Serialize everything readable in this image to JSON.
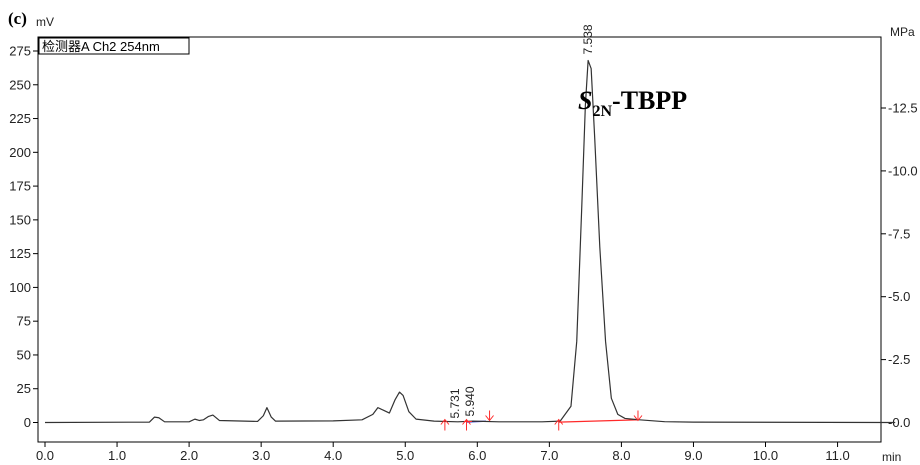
{
  "panel_label": "(c)",
  "chart_data": {
    "type": "line",
    "title": "",
    "detector_label": "检测器A Ch2 254nm",
    "compound_label": {
      "italic": "S",
      "subscript": "2N",
      "rest": "-TBPP"
    },
    "xlabel": "min",
    "ylabel_left": "mV",
    "ylabel_right": "MPa",
    "xlim": [
      0.0,
      11.8
    ],
    "ylim_left": [
      -5,
      280
    ],
    "ylim_right": [
      0.0,
      14.7
    ],
    "x_ticks": [
      "0.0",
      "1.0",
      "2.0",
      "3.0",
      "4.0",
      "5.0",
      "6.0",
      "7.0",
      "8.0",
      "9.0",
      "10.0",
      "11.0"
    ],
    "y_ticks_left": [
      "0",
      "25",
      "50",
      "75",
      "100",
      "125",
      "150",
      "175",
      "200",
      "225",
      "250",
      "275"
    ],
    "y_ticks_right": [
      "0.0",
      "2.5",
      "5.0",
      "7.5",
      "10.0",
      "12.5"
    ],
    "grid": false,
    "peak_labels": [
      {
        "x": 7.538,
        "text": "7.538"
      },
      {
        "x": 5.731,
        "text": "5.731"
      },
      {
        "x": 5.94,
        "text": "5.940"
      }
    ],
    "series": [
      {
        "color": "#333333",
        "points": [
          [
            0.0,
            0.0
          ],
          [
            1.45,
            0.3
          ],
          [
            1.52,
            4.0
          ],
          [
            1.58,
            3.5
          ],
          [
            1.66,
            0.5
          ],
          [
            2.0,
            0.5
          ],
          [
            2.08,
            2.5
          ],
          [
            2.14,
            1.5
          ],
          [
            2.2,
            2.0
          ],
          [
            2.27,
            4.5
          ],
          [
            2.33,
            5.5
          ],
          [
            2.42,
            1.5
          ],
          [
            2.95,
            0.8
          ],
          [
            3.03,
            5.0
          ],
          [
            3.08,
            11.0
          ],
          [
            3.14,
            4.0
          ],
          [
            3.2,
            1.0
          ],
          [
            4.0,
            1.2
          ],
          [
            4.4,
            2.0
          ],
          [
            4.55,
            6.0
          ],
          [
            4.62,
            11.0
          ],
          [
            4.7,
            9.0
          ],
          [
            4.78,
            7.0
          ],
          [
            4.86,
            17.0
          ],
          [
            4.92,
            22.5
          ],
          [
            4.97,
            20.0
          ],
          [
            5.05,
            8.0
          ],
          [
            5.15,
            2.5
          ],
          [
            5.4,
            1.0
          ],
          [
            5.73,
            0.5
          ],
          [
            5.94,
            1.0
          ],
          [
            6.3,
            0.5
          ],
          [
            6.9,
            0.5
          ],
          [
            7.15,
            1.0
          ],
          [
            7.3,
            12.0
          ],
          [
            7.38,
            60.0
          ],
          [
            7.45,
            160.0
          ],
          [
            7.5,
            235.0
          ],
          [
            7.538,
            268.0
          ],
          [
            7.58,
            262.0
          ],
          [
            7.63,
            210.0
          ],
          [
            7.7,
            130.0
          ],
          [
            7.78,
            60.0
          ],
          [
            7.86,
            18.0
          ],
          [
            7.95,
            6.0
          ],
          [
            8.05,
            3.0
          ],
          [
            8.25,
            2.0
          ],
          [
            8.6,
            0.6
          ],
          [
            9.0,
            0.3
          ],
          [
            11.8,
            0.0
          ]
        ]
      }
    ],
    "baselines": [
      {
        "color": "#ff2a2a",
        "from": [
          7.13,
          0.3
        ],
        "to": [
          8.23,
          2.0
        ]
      },
      {
        "color": "#1a22cc",
        "from": [
          5.85,
          0.4
        ],
        "to": [
          6.12,
          0.9
        ]
      }
    ],
    "integration_markers": {
      "color": "#ff2a2a",
      "up": [
        5.55,
        5.85,
        7.13
      ],
      "down": [
        6.17,
        8.23
      ],
      "extra_cross": [
        5.87
      ]
    }
  }
}
